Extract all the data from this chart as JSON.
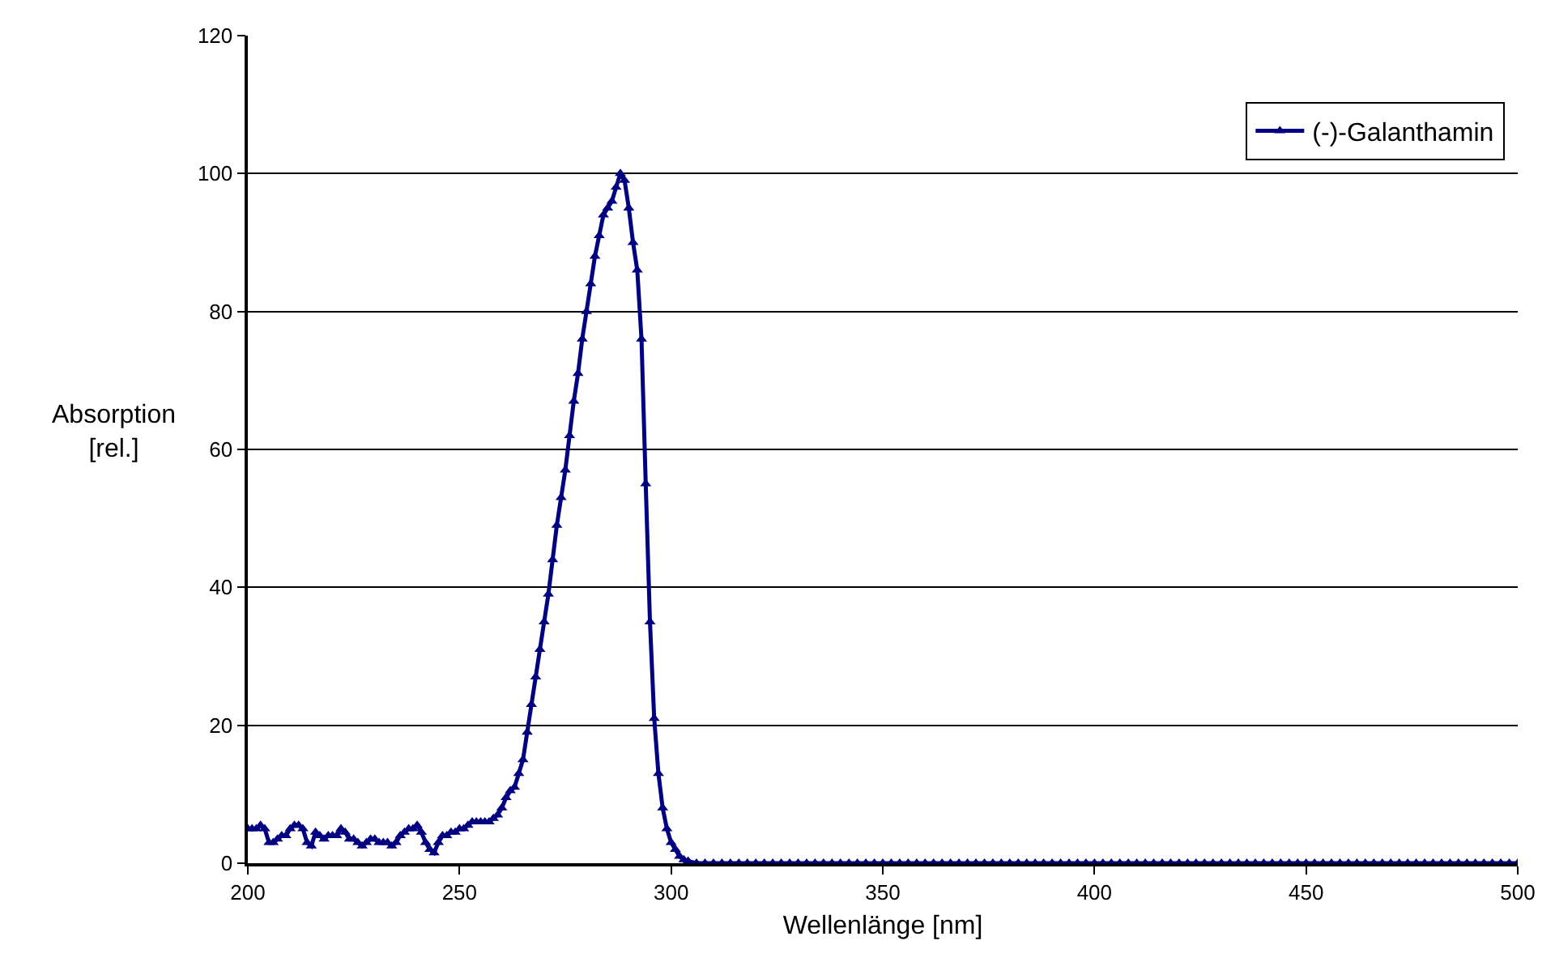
{
  "chart_data": {
    "type": "line",
    "xlabel": "Wellenlänge [nm]",
    "ylabel": "Absorption [rel.]",
    "x": [
      200,
      201,
      202,
      203,
      204,
      205,
      206,
      207,
      208,
      209,
      210,
      211,
      212,
      213,
      214,
      215,
      216,
      217,
      218,
      219,
      220,
      221,
      222,
      223,
      224,
      225,
      226,
      227,
      228,
      229,
      230,
      231,
      232,
      233,
      234,
      235,
      236,
      237,
      238,
      239,
      240,
      241,
      242,
      243,
      244,
      245,
      246,
      247,
      248,
      249,
      250,
      251,
      252,
      253,
      254,
      255,
      256,
      257,
      258,
      259,
      260,
      261,
      262,
      263,
      264,
      265,
      266,
      267,
      268,
      269,
      270,
      271,
      272,
      273,
      274,
      275,
      276,
      277,
      278,
      279,
      280,
      281,
      282,
      283,
      284,
      285,
      286,
      287,
      288,
      289,
      290,
      291,
      292,
      293,
      294,
      295,
      296,
      297,
      298,
      299,
      300,
      301,
      302,
      303,
      304,
      306,
      308,
      310,
      312,
      314,
      316,
      318,
      320,
      322,
      324,
      326,
      328,
      330,
      332,
      334,
      336,
      338,
      340,
      342,
      344,
      346,
      348,
      350,
      352,
      354,
      356,
      358,
      360,
      362,
      364,
      366,
      368,
      370,
      372,
      374,
      376,
      378,
      380,
      382,
      384,
      386,
      388,
      390,
      392,
      394,
      396,
      398,
      400,
      402,
      404,
      406,
      408,
      410,
      412,
      414,
      416,
      418,
      420,
      422,
      424,
      426,
      428,
      430,
      432,
      434,
      436,
      438,
      440,
      442,
      444,
      446,
      448,
      450,
      452,
      454,
      456,
      458,
      460,
      462,
      464,
      466,
      468,
      470,
      472,
      474,
      476,
      478,
      480,
      482,
      484,
      486,
      488,
      490,
      492,
      494,
      496,
      498,
      500
    ],
    "series": [
      {
        "name": "(-)-Galanthamin",
        "color": "#000080",
        "values": [
          5,
          5,
          5,
          5.5,
          5,
          3,
          3,
          3.5,
          4,
          4,
          5,
          5.5,
          5.5,
          5,
          3,
          2.5,
          4.5,
          4,
          3.5,
          4,
          4,
          4,
          5,
          4.5,
          3.5,
          3.5,
          3,
          2.5,
          3,
          3.5,
          3.5,
          3,
          3,
          3,
          2.5,
          3,
          4,
          4.5,
          5,
          5,
          5.5,
          4.5,
          3,
          2,
          1.5,
          3,
          4,
          4,
          4.5,
          4.5,
          5,
          5,
          5.5,
          6,
          6,
          6,
          6,
          6,
          6.5,
          7,
          8,
          9.5,
          10.5,
          11,
          13,
          15,
          19,
          23,
          27,
          31,
          35,
          39,
          44,
          49,
          53,
          57,
          62,
          67,
          71,
          76,
          80,
          84,
          88,
          91,
          94,
          95,
          96,
          98,
          100,
          99,
          95,
          90,
          86,
          76,
          55,
          35,
          21,
          13,
          8,
          5,
          3,
          2,
          1,
          0.5,
          0.3,
          0,
          0,
          0,
          0,
          0,
          0,
          0,
          0,
          0,
          0,
          0,
          0,
          0,
          0,
          0,
          0,
          0,
          0,
          0,
          0,
          0,
          0,
          0,
          0,
          0,
          0,
          0,
          0,
          0,
          0,
          0,
          0,
          0,
          0,
          0,
          0,
          0,
          0,
          0,
          0,
          0,
          0,
          0,
          0,
          0,
          0,
          0,
          0,
          0,
          0,
          0,
          0,
          0,
          0,
          0,
          0,
          0,
          0,
          0,
          0,
          0,
          0,
          0,
          0,
          0,
          0,
          0,
          0,
          0,
          0,
          0,
          0,
          0,
          0,
          0,
          0,
          0,
          0,
          0,
          0,
          0,
          0,
          0,
          0,
          0,
          0,
          0,
          0,
          0,
          0,
          0,
          0,
          0,
          0,
          0,
          0,
          0,
          0
        ]
      }
    ],
    "xlim": [
      200,
      500
    ],
    "xticks": [
      200,
      250,
      300,
      350,
      400,
      450,
      500
    ],
    "ylim": [
      0,
      120
    ],
    "yticks": [
      0,
      20,
      40,
      60,
      80,
      100,
      120
    ],
    "grid": "y",
    "legend": "top right",
    "marker": "triangle",
    "line_style": "solid"
  }
}
